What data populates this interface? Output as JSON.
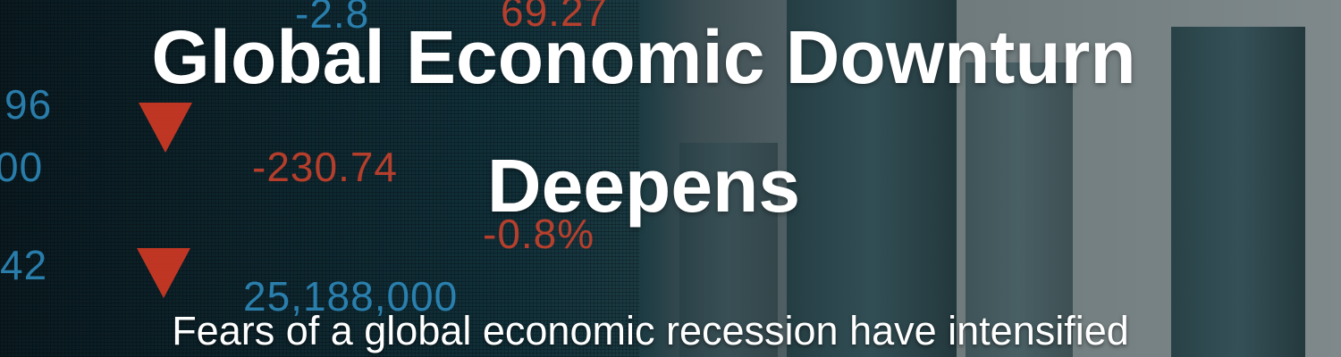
{
  "headline": {
    "title": "Global Economic Downturn Deepens",
    "subtitle": "Fears of a global economic recession have intensified"
  },
  "ticker": {
    "values": [
      "-230.74",
      "25,188,000",
      "96",
      "00",
      "42",
      "-2.8",
      "69.27",
      "-0.8%"
    ]
  }
}
